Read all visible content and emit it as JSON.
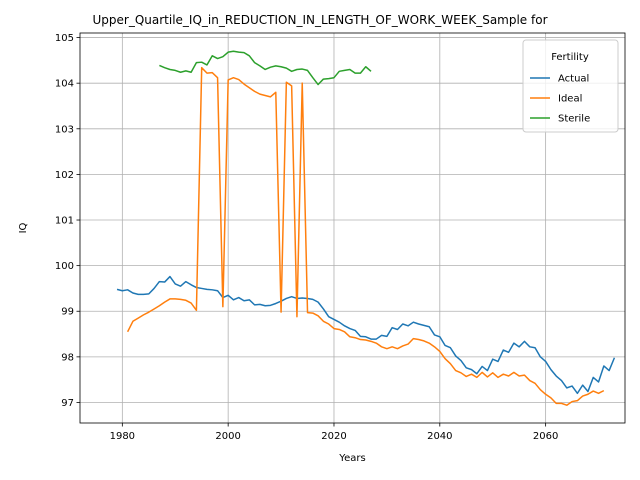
{
  "chart_data": {
    "type": "line",
    "title": "Upper_Quartile_IQ_in_REDUCTION_IN_LENGTH_OF_WORK_WEEK_Sample for",
    "xlabel": "Years",
    "ylabel": "IQ",
    "xlim": [
      1972,
      2075
    ],
    "ylim": [
      96.55,
      105.1
    ],
    "xticks": [
      1980,
      2000,
      2020,
      2040,
      2060
    ],
    "yticks": [
      97,
      98,
      99,
      100,
      101,
      102,
      103,
      104,
      105
    ],
    "grid": true,
    "legend": {
      "title": "Fertility",
      "placement": "top-right"
    },
    "series": [
      {
        "name": "Actual",
        "color": "#1f77b4",
        "x_start": 1979,
        "values": [
          99.48,
          99.45,
          99.47,
          99.4,
          99.37,
          99.37,
          99.38,
          99.5,
          99.65,
          99.64,
          99.76,
          99.6,
          99.55,
          99.65,
          99.58,
          99.52,
          99.5,
          99.48,
          99.47,
          99.45,
          99.3,
          99.35,
          99.25,
          99.3,
          99.23,
          99.25,
          99.14,
          99.15,
          99.12,
          99.13,
          99.17,
          99.22,
          99.28,
          99.32,
          99.28,
          99.29,
          99.28,
          99.26,
          99.2,
          99.05,
          98.88,
          98.82,
          98.76,
          98.68,
          98.62,
          98.58,
          98.45,
          98.44,
          98.39,
          98.39,
          98.47,
          98.45,
          98.64,
          98.6,
          98.72,
          98.68,
          98.76,
          98.72,
          98.69,
          98.66,
          98.48,
          98.44,
          98.25,
          98.2,
          98.02,
          97.92,
          97.76,
          97.72,
          97.63,
          97.79,
          97.7,
          97.95,
          97.9,
          98.15,
          98.1,
          98.3,
          98.22,
          98.34,
          98.22,
          98.2,
          98.0,
          97.9,
          97.72,
          97.58,
          97.48,
          97.32,
          97.36,
          97.2,
          97.38,
          97.24,
          97.55,
          97.45,
          97.8,
          97.7,
          97.98
        ]
      },
      {
        "name": "Ideal",
        "color": "#ff7f0e",
        "x_start": 1981,
        "values": [
          98.55,
          98.78,
          98.85,
          98.92,
          98.98,
          99.05,
          99.12,
          99.2,
          99.27,
          99.27,
          99.26,
          99.24,
          99.18,
          99.02,
          104.34,
          104.22,
          104.23,
          104.12,
          99.1,
          104.07,
          104.12,
          104.08,
          103.98,
          103.9,
          103.82,
          103.76,
          103.73,
          103.7,
          103.8,
          98.98,
          104.02,
          103.94,
          98.88,
          104.0,
          98.97,
          98.96,
          98.9,
          98.78,
          98.72,
          98.62,
          98.6,
          98.55,
          98.44,
          98.42,
          98.38,
          98.37,
          98.34,
          98.3,
          98.22,
          98.18,
          98.22,
          98.18,
          98.24,
          98.28,
          98.4,
          98.38,
          98.35,
          98.3,
          98.22,
          98.12,
          97.96,
          97.85,
          97.7,
          97.65,
          97.57,
          97.62,
          97.55,
          97.66,
          97.56,
          97.65,
          97.55,
          97.62,
          97.58,
          97.66,
          97.58,
          97.6,
          97.48,
          97.42,
          97.28,
          97.18,
          97.1,
          96.98,
          96.98,
          96.94,
          97.02,
          97.04,
          97.14,
          97.18,
          97.25,
          97.2,
          97.26
        ]
      },
      {
        "name": "Sterile",
        "color": "#2ca02c",
        "x_start": 1987,
        "values": [
          104.39,
          104.34,
          104.3,
          104.28,
          104.24,
          104.27,
          104.24,
          104.45,
          104.46,
          104.4,
          104.6,
          104.54,
          104.58,
          104.68,
          104.7,
          104.68,
          104.67,
          104.6,
          104.45,
          104.38,
          104.3,
          104.35,
          104.38,
          104.36,
          104.33,
          104.26,
          104.3,
          104.31,
          104.28,
          104.12,
          103.97,
          104.09,
          104.1,
          104.12,
          104.26,
          104.28,
          104.3,
          104.22,
          104.22,
          104.36,
          104.26
        ]
      }
    ]
  }
}
